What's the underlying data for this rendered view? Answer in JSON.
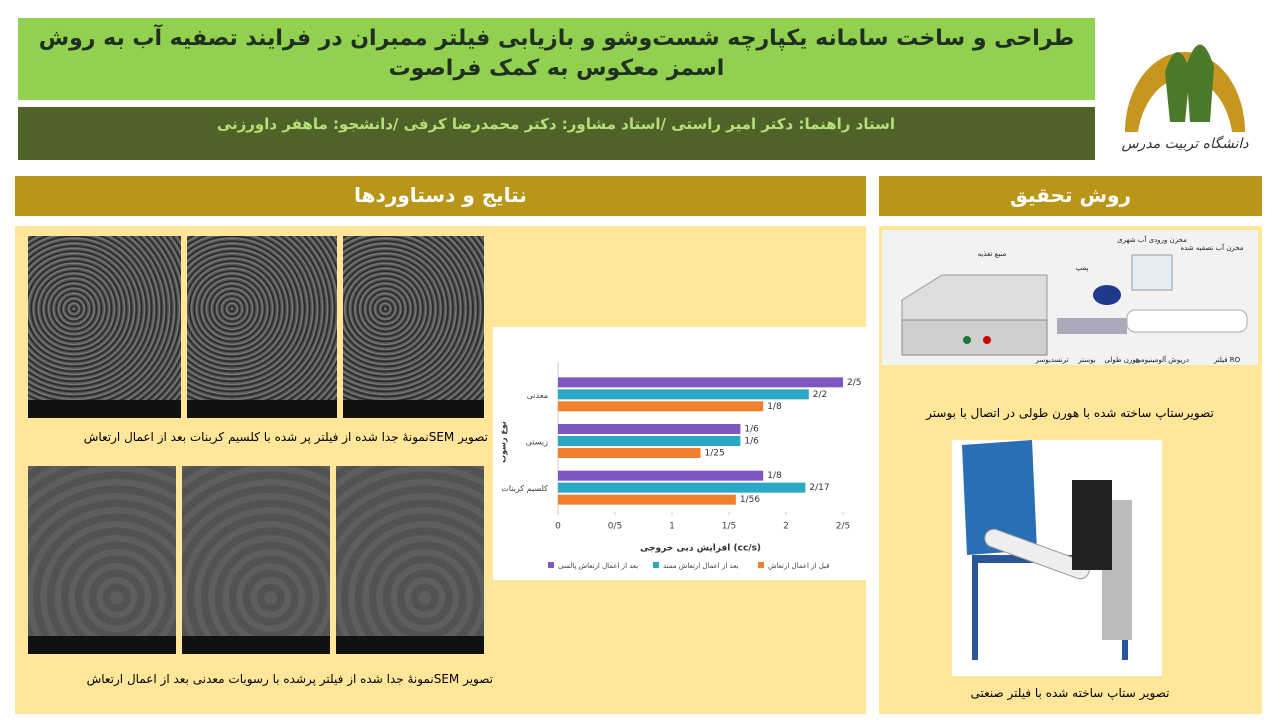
{
  "header": {
    "title": "طراحی و ساخت سامانه یکپارچه شست‌وشو و بازیابی فیلتر ممبران در فرایند تصفیه آب به روش اسمز معکوس به کمک فراصوت",
    "authors": "استاد راهنما: دکتر امیر راستی /استاد مشاور: دکتر محمدرضا کرفی /دانشجو: ماهفر داورزنی"
  },
  "logo": {
    "text": "دانشگاه تربیت مدرس"
  },
  "results": {
    "title": "نتایج و دستاوردها",
    "caption1": "تصویر SEMنمونهٔ جدا شده از فیلتر پر شده با کلسیم کربنات  بعد از اعمال ارتعاش",
    "caption2": "تصویر  SEMنمونهٔ جدا شده از فیلتر پرشده با رسوبات معدنی بعد از اعمال ارتعاش"
  },
  "method": {
    "title": "روش تحقیق",
    "caption1": "تصویرستاپ ساخته شده با هورن طولی  در اتصال با بوستر",
    "caption2": "تصویر ستاپ ساخته شده با فیلتر صنعتی",
    "labels": [
      "منبع تغذیه",
      "پمپ",
      "مخزن ورودی آب شهری",
      "مخزن آب تصفیه شده",
      "ترنسدیوسر",
      "بوستر",
      "هورن طولی",
      "دریوش آلومینیومی",
      "فیلتر RO"
    ]
  },
  "chart_data": {
    "type": "bar",
    "orientation": "horizontal",
    "x_label": "افزایش دبی خروجی (cc/s)",
    "y_label": "نوع رسوب",
    "categories": [
      "معدنی",
      "زیستی",
      "کلسیم کربنات"
    ],
    "series": [
      {
        "name": "بعد از اعمال ارتعاش پالسی",
        "color": "#7e57c2",
        "values": [
          2.5,
          1.6,
          1.8
        ],
        "value_labels": [
          "2/5",
          "1/6",
          "1/8"
        ]
      },
      {
        "name": "بعد از اعمال ارتعاش ممتد",
        "color": "#2aa8c4",
        "values": [
          2.2,
          1.6,
          2.17
        ],
        "value_labels": [
          "2/2",
          "1/6",
          "2/17"
        ]
      },
      {
        "name": "قبل از اعمال ارتعاش",
        "color": "#f07f2e",
        "values": [
          1.8,
          1.25,
          1.56
        ],
        "value_labels": [
          "1/8",
          "1/25",
          "1/56"
        ]
      }
    ],
    "xlim": [
      0,
      2.5
    ],
    "xticks": [
      0,
      {
        "value": 0.5,
        "label": "0/5"
      },
      1,
      {
        "value": 1.5,
        "label": "1/5"
      },
      2,
      {
        "value": 2.5,
        "label": "2/5"
      }
    ]
  }
}
